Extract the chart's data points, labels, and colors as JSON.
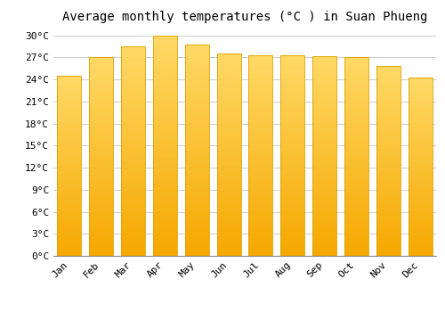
{
  "months": [
    "Jan",
    "Feb",
    "Mar",
    "Apr",
    "May",
    "Jun",
    "Jul",
    "Aug",
    "Sep",
    "Oct",
    "Nov",
    "Dec"
  ],
  "values": [
    24.5,
    27.0,
    28.5,
    30.0,
    28.8,
    27.5,
    27.3,
    27.3,
    27.2,
    27.0,
    25.8,
    24.3
  ],
  "bar_color_bottom": "#F5A800",
  "bar_color_top": "#FFD966",
  "bar_edge_color": "#DDA000",
  "title": "Average monthly temperatures (°C ) in Suan Phueng",
  "ylim": [
    0,
    31
  ],
  "ytick_values": [
    0,
    3,
    6,
    9,
    12,
    15,
    18,
    21,
    24,
    27,
    30
  ],
  "ytick_labels": [
    "0°C",
    "3°C",
    "6°C",
    "9°C",
    "12°C",
    "15°C",
    "18°C",
    "21°C",
    "24°C",
    "27°C",
    "30°C"
  ],
  "background_color": "#ffffff",
  "grid_color": "#cccccc",
  "title_fontsize": 10,
  "tick_fontsize": 8,
  "font_family": "monospace",
  "bar_width": 0.75,
  "num_grad": 200
}
